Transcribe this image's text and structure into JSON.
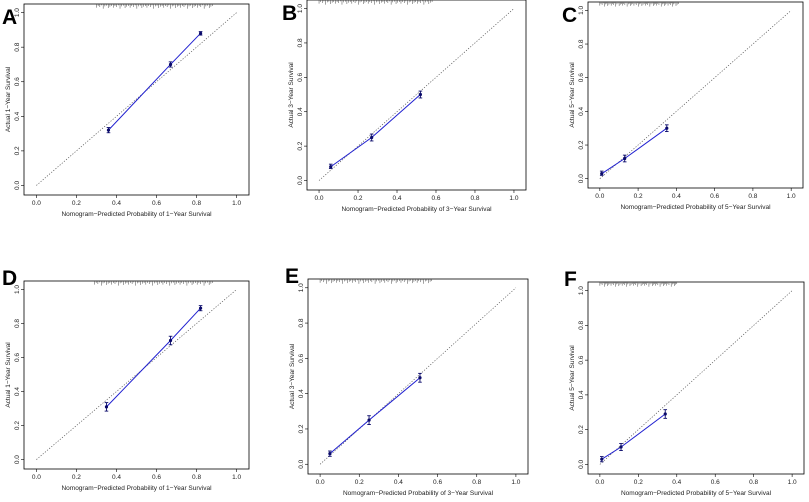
{
  "chart_data": [
    {
      "panel": "A",
      "type": "line",
      "xlabel": "Nomogram−Predicted Probability of 1−Year Survival",
      "ylabel": "Actual 1−Year Survival",
      "xlim": [
        0,
        1
      ],
      "ylim": [
        0,
        1
      ],
      "xticks": [
        "0.0",
        "0.2",
        "0.4",
        "0.6",
        "0.8",
        "1.0"
      ],
      "yticks": [
        "0.0",
        "0.2",
        "0.4",
        "0.6",
        "0.8",
        "1.0"
      ],
      "series": [
        {
          "name": "calibration",
          "color": "#2020d0",
          "points": [
            {
              "x": 0.36,
              "y": 0.32,
              "lo": 0.305,
              "hi": 0.335
            },
            {
              "x": 0.67,
              "y": 0.7,
              "lo": 0.685,
              "hi": 0.715
            },
            {
              "x": 0.82,
              "y": 0.88,
              "lo": 0.87,
              "hi": 0.89
            }
          ]
        }
      ],
      "reference_line": "ideal"
    },
    {
      "panel": "B",
      "type": "line",
      "xlabel": "Nomogram−Predicted Probability of 3−Year Survival",
      "ylabel": "Actual 3−Year Survival",
      "xlim": [
        0,
        1
      ],
      "ylim": [
        0,
        1
      ],
      "xticks": [
        "0.0",
        "0.2",
        "0.4",
        "0.6",
        "0.8",
        "1.0"
      ],
      "yticks": [
        "0.0",
        "0.2",
        "0.4",
        "0.6",
        "0.8",
        "1.0"
      ],
      "series": [
        {
          "name": "calibration",
          "color": "#2020d0",
          "points": [
            {
              "x": 0.06,
              "y": 0.08,
              "lo": 0.07,
              "hi": 0.095
            },
            {
              "x": 0.27,
              "y": 0.25,
              "lo": 0.23,
              "hi": 0.27
            },
            {
              "x": 0.52,
              "y": 0.5,
              "lo": 0.48,
              "hi": 0.52
            }
          ]
        }
      ],
      "reference_line": "ideal"
    },
    {
      "panel": "C",
      "type": "line",
      "xlabel": "Nomogram−Predicted Probability of 5−Year Survival",
      "ylabel": "Actual 5−Year Survival",
      "xlim": [
        0,
        1
      ],
      "ylim": [
        0,
        1
      ],
      "xticks": [
        "0.0",
        "0.2",
        "0.4",
        "0.6",
        "0.8",
        "1.0"
      ],
      "yticks": [
        "0.0",
        "0.2",
        "0.4",
        "0.6",
        "0.8",
        "1.0"
      ],
      "series": [
        {
          "name": "calibration",
          "color": "#2020d0",
          "points": [
            {
              "x": 0.01,
              "y": 0.03,
              "lo": 0.02,
              "hi": 0.045
            },
            {
              "x": 0.13,
              "y": 0.12,
              "lo": 0.1,
              "hi": 0.14
            },
            {
              "x": 0.35,
              "y": 0.3,
              "lo": 0.28,
              "hi": 0.32
            }
          ]
        }
      ],
      "reference_line": "ideal"
    },
    {
      "panel": "D",
      "type": "line",
      "xlabel": "Nomogram−Predicted Probability of 1−Year Survival",
      "ylabel": "Actual 1−Year Survival",
      "xlim": [
        0,
        1
      ],
      "ylim": [
        0,
        1
      ],
      "xticks": [
        "0.0",
        "0.2",
        "0.4",
        "0.6",
        "0.8",
        "1.0"
      ],
      "yticks": [
        "0.0",
        "0.2",
        "0.4",
        "0.6",
        "0.8",
        "1.0"
      ],
      "series": [
        {
          "name": "calibration",
          "color": "#2020d0",
          "points": [
            {
              "x": 0.35,
              "y": 0.31,
              "lo": 0.285,
              "hi": 0.335
            },
            {
              "x": 0.67,
              "y": 0.7,
              "lo": 0.675,
              "hi": 0.725
            },
            {
              "x": 0.82,
              "y": 0.89,
              "lo": 0.875,
              "hi": 0.905
            }
          ]
        }
      ],
      "reference_line": "ideal"
    },
    {
      "panel": "E",
      "type": "line",
      "xlabel": "Nomogram−Predicted Probability of 3−Year Survival",
      "ylabel": "Actual 3−Year Survival",
      "xlim": [
        0,
        1
      ],
      "ylim": [
        0,
        1
      ],
      "xticks": [
        "0.0",
        "0.2",
        "0.4",
        "0.6",
        "0.8",
        "1.0"
      ],
      "yticks": [
        "0.0",
        "0.2",
        "0.4",
        "0.6",
        "0.8",
        "1.0"
      ],
      "series": [
        {
          "name": "calibration",
          "color": "#2020d0",
          "points": [
            {
              "x": 0.05,
              "y": 0.06,
              "lo": 0.045,
              "hi": 0.075
            },
            {
              "x": 0.25,
              "y": 0.25,
              "lo": 0.225,
              "hi": 0.275
            },
            {
              "x": 0.51,
              "y": 0.49,
              "lo": 0.465,
              "hi": 0.515
            }
          ]
        }
      ],
      "reference_line": "ideal"
    },
    {
      "panel": "F",
      "type": "line",
      "xlabel": "Nomogram−Predicted Probability of 5−Year Survival",
      "ylabel": "Actual 5−Year Survival",
      "xlim": [
        0,
        1
      ],
      "ylim": [
        0,
        1
      ],
      "xticks": [
        "0.0",
        "0.2",
        "0.4",
        "0.6",
        "0.8",
        "1.0"
      ],
      "yticks": [
        "0.0",
        "0.2",
        "0.4",
        "0.6",
        "0.8",
        "1.0"
      ],
      "series": [
        {
          "name": "calibration",
          "color": "#2020d0",
          "points": [
            {
              "x": 0.01,
              "y": 0.03,
              "lo": 0.015,
              "hi": 0.045
            },
            {
              "x": 0.11,
              "y": 0.1,
              "lo": 0.08,
              "hi": 0.12
            },
            {
              "x": 0.34,
              "y": 0.29,
              "lo": 0.265,
              "hi": 0.315
            }
          ]
        }
      ],
      "reference_line": "ideal"
    }
  ],
  "colors": {
    "calibration": "#2020d0",
    "points": "#0a0a6a",
    "reference": "#555555",
    "frame": "#000000"
  }
}
